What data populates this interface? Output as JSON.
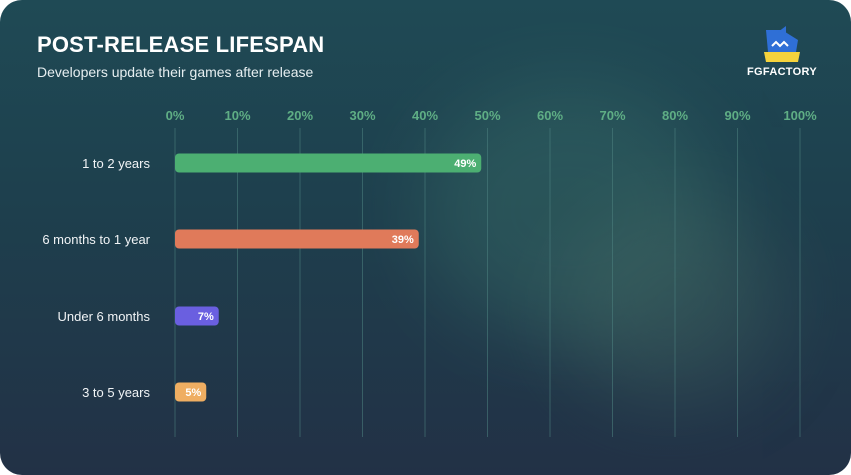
{
  "header": {
    "title": "POST-RELEASE LIFESPAN",
    "subtitle": "Developers update their games after release"
  },
  "brand": {
    "name": "FGFACTORY",
    "logo_icon": "whale-icon"
  },
  "chart_data": {
    "type": "bar",
    "orientation": "horizontal",
    "title": "POST-RELEASE LIFESPAN",
    "subtitle": "Developers update their games after release",
    "categories": [
      "1 to 2 years",
      "6 months to 1 year",
      "Under 6 months",
      "3 to 5 years"
    ],
    "values": [
      49,
      39,
      7,
      5
    ],
    "data_labels": [
      "49%",
      "39%",
      "7%",
      "5%"
    ],
    "colors": [
      "#4caf72",
      "#e07a5a",
      "#6a5fe0",
      "#efae62"
    ],
    "xlim": [
      0,
      100
    ],
    "x_ticks": [
      "0%",
      "10%",
      "20%",
      "30%",
      "40%",
      "50%",
      "60%",
      "70%",
      "80%",
      "90%",
      "100%"
    ],
    "grid": true,
    "legend": "none"
  }
}
